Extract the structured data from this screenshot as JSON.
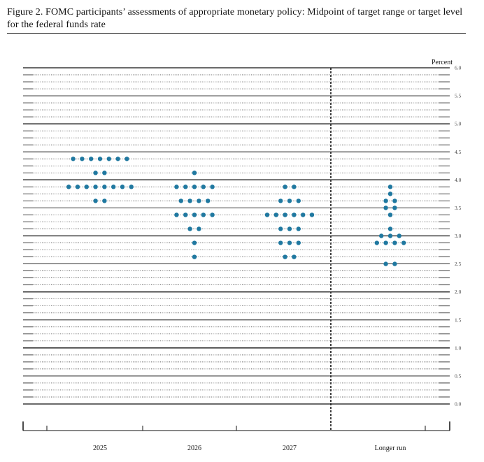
{
  "figure": {
    "title": "Figure 2.  FOMC participants’ assessments of appropriate monetary policy: Midpoint of target range or target level for the federal funds rate"
  },
  "chart_data": {
    "type": "scatter",
    "ylabel": "Percent",
    "ylim": [
      0,
      6
    ],
    "y_ticks": [
      "0.0",
      "0.5",
      "1.0",
      "1.5",
      "2.0",
      "2.5",
      "3.0",
      "3.5",
      "4.0",
      "4.5",
      "5.0",
      "5.5",
      "6.0"
    ],
    "categories": [
      "2025",
      "2026",
      "2027",
      "Longer run"
    ],
    "grid": true,
    "dot_color": "#1f78a0",
    "series": [
      {
        "category": "2025",
        "points": [
          {
            "y": 4.375,
            "count": 7
          },
          {
            "y": 4.125,
            "count": 2
          },
          {
            "y": 3.875,
            "count": 8
          },
          {
            "y": 3.625,
            "count": 2
          }
        ]
      },
      {
        "category": "2026",
        "points": [
          {
            "y": 4.125,
            "count": 1
          },
          {
            "y": 3.875,
            "count": 5
          },
          {
            "y": 3.625,
            "count": 4
          },
          {
            "y": 3.375,
            "count": 5
          },
          {
            "y": 3.125,
            "count": 2
          },
          {
            "y": 2.875,
            "count": 1
          },
          {
            "y": 2.625,
            "count": 1
          }
        ]
      },
      {
        "category": "2027",
        "points": [
          {
            "y": 3.875,
            "count": 2
          },
          {
            "y": 3.625,
            "count": 3
          },
          {
            "y": 3.375,
            "count": 6
          },
          {
            "y": 3.125,
            "count": 3
          },
          {
            "y": 2.875,
            "count": 3
          },
          {
            "y": 2.625,
            "count": 2
          }
        ]
      },
      {
        "category": "Longer run",
        "points": [
          {
            "y": 3.875,
            "count": 1
          },
          {
            "y": 3.75,
            "count": 1
          },
          {
            "y": 3.625,
            "count": 2
          },
          {
            "y": 3.5,
            "count": 2
          },
          {
            "y": 3.375,
            "count": 1
          },
          {
            "y": 3.125,
            "count": 1
          },
          {
            "y": 3.0,
            "count": 3
          },
          {
            "y": 2.875,
            "count": 4
          },
          {
            "y": 2.5,
            "count": 2
          }
        ]
      }
    ]
  }
}
